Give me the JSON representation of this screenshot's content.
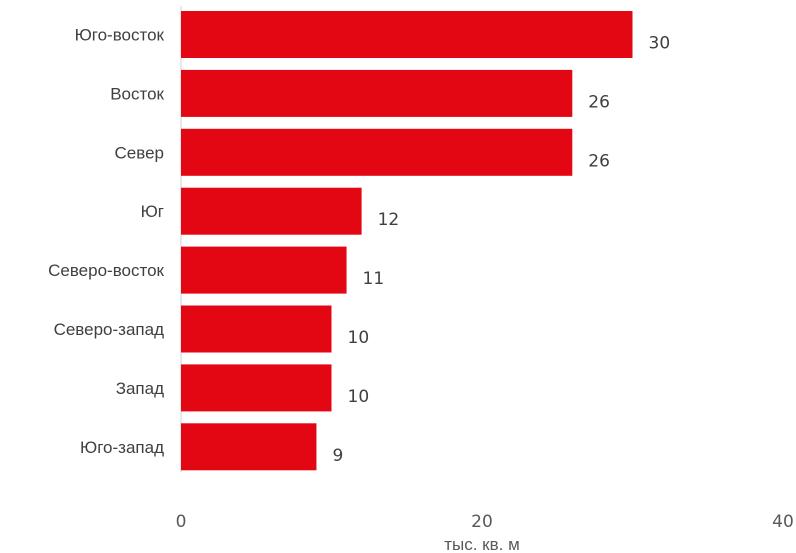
{
  "chart_data": {
    "type": "bar",
    "orientation": "horizontal",
    "categories": [
      "Юго-восток",
      "Восток",
      "Север",
      "Юг",
      "Северо-восток",
      "Северо-запад",
      "Запад",
      "Юго-запад"
    ],
    "values": [
      30,
      26,
      26,
      12,
      11,
      10,
      10,
      9
    ],
    "value_labels": [
      "30",
      "26",
      "26",
      "12",
      "11",
      "10",
      "10",
      "9"
    ],
    "xlabel": "тыс. кв. м",
    "ylabel": "",
    "xlim": [
      0,
      40
    ],
    "xticks": [
      0,
      20,
      40
    ],
    "bar_color": "#e30613",
    "grid": false,
    "legend": "none"
  }
}
